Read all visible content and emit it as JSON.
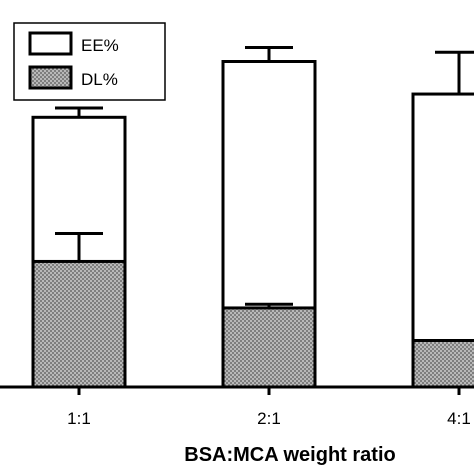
{
  "chart_data": {
    "type": "bar",
    "stacked": "overlay",
    "categories": [
      "1:1",
      "2:1",
      "4:1"
    ],
    "series": [
      {
        "name": "EE%",
        "values": [
          58,
          70,
          63
        ],
        "errors": [
          2,
          3,
          9
        ],
        "fill": "#ffffff",
        "pattern": "none"
      },
      {
        "name": "DL%",
        "values": [
          27,
          17,
          10
        ],
        "errors": [
          6,
          0.8,
          0
        ],
        "fill": "#9a9a9a",
        "pattern": "dots"
      }
    ],
    "xlabel": "BSA:MCA weight ratio",
    "ylabel": "",
    "ylim": [
      0,
      80
    ],
    "grid": false,
    "legend": {
      "position": "top-left"
    },
    "colors": {
      "line": "#000000",
      "dl_fill": "#9a9a9a",
      "ee_fill": "#ffffff"
    }
  }
}
